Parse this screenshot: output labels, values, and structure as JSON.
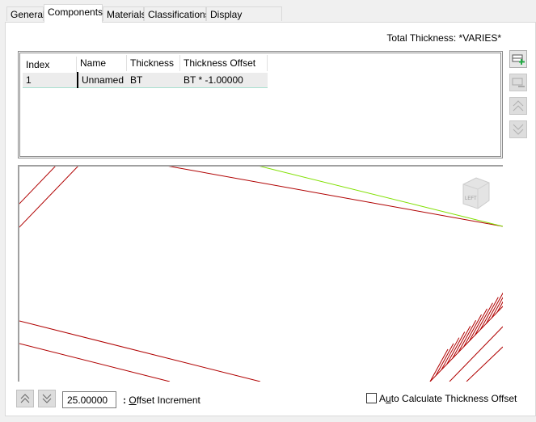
{
  "tabs": [
    {
      "label": "General"
    },
    {
      "label": "Components",
      "active": true
    },
    {
      "label": "Materials"
    },
    {
      "label": "Classifications"
    },
    {
      "label": "Display Properties"
    }
  ],
  "total_thickness": {
    "label": "Total Thickness:",
    "value": "*VARIES*"
  },
  "table": {
    "columns": [
      "Index",
      "Name",
      "Thickness",
      "Thickness Offset"
    ],
    "rows": [
      {
        "index": "1",
        "name": "Unnamed",
        "thickness": "BT",
        "offset": "BT * -1.00000"
      }
    ]
  },
  "side_buttons": [
    "add-component",
    "remove-component",
    "move-up",
    "move-down"
  ],
  "viewcube": {
    "face": "LEFT"
  },
  "colors": {
    "component_line": "#b00000",
    "highlight_line": "#80e000"
  },
  "bottom": {
    "offset_value": "25.00000",
    "offset_label_prefix": ": ",
    "offset_label_key": "O",
    "offset_label_rest": "ffset Increment",
    "auto_calc": {
      "pre": "A",
      "key": "u",
      "rest": "to Calculate Thickness Offset",
      "checked": false
    }
  }
}
